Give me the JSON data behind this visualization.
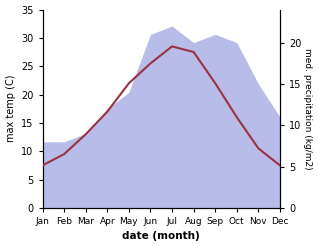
{
  "months": [
    "Jan",
    "Feb",
    "Mar",
    "Apr",
    "May",
    "Jun",
    "Jul",
    "Aug",
    "Sep",
    "Oct",
    "Nov",
    "Dec"
  ],
  "temp": [
    7.5,
    9.5,
    13.0,
    17.0,
    22.0,
    25.5,
    28.5,
    27.5,
    22.0,
    16.0,
    10.5,
    7.5
  ],
  "precip": [
    8.0,
    8.0,
    9.0,
    12.0,
    14.0,
    21.0,
    22.0,
    20.0,
    21.0,
    20.0,
    15.0,
    11.0
  ],
  "temp_color": "#993344",
  "precip_fill_color": "#b8bce8",
  "xlabel": "date (month)",
  "ylabel_left": "max temp (C)",
  "ylabel_right": "med. precipitation (kg/m2)",
  "ylim_left": [
    0,
    35
  ],
  "ylim_right": [
    0,
    24
  ],
  "yticks_left": [
    0,
    5,
    10,
    15,
    20,
    25,
    30,
    35
  ],
  "yticks_right": [
    0,
    5,
    10,
    15,
    20
  ],
  "bg_color": "#ffffff",
  "fig_width": 3.18,
  "fig_height": 2.47,
  "dpi": 100
}
